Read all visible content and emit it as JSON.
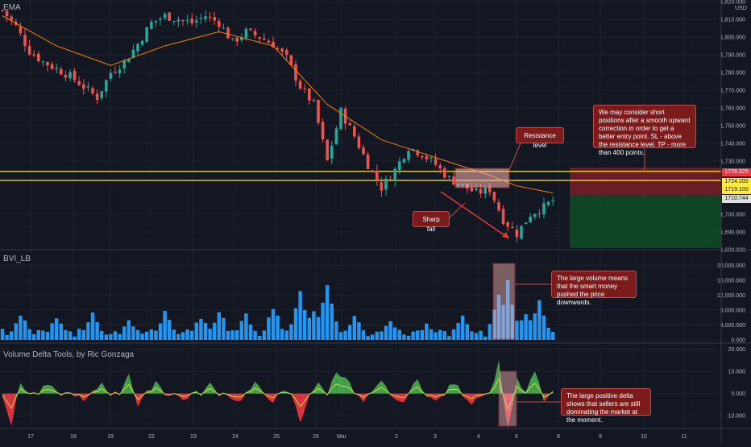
{
  "panels": {
    "price_label": "EMA",
    "currency": "USD",
    "volume_label": "BVI_LB",
    "delta_label": "Volume Delta Tools, by Ric Gonzaga"
  },
  "annotations": {
    "resistance": "Resistance level",
    "sharp_fall": "Sharp fall",
    "strategy": "We may consider short positions after a smooth upward correction in order to get a better entry point. SL - above the resistance level. TP - more than 400 points.",
    "volume": "The large volume means that the smart money pushed the price downwards.",
    "delta": "The large positive delta shows that sellers are still dominating the market at the moment."
  },
  "price_tags": [
    {
      "value": "1726.325",
      "bg": "#f23645",
      "fg": "#ffffff"
    },
    {
      "value": "1724.200",
      "bg": "#ffeb3b",
      "fg": "#131722"
    },
    {
      "value": "1719.100",
      "bg": "#ffeb3b",
      "fg": "#131722"
    },
    {
      "value": "1710.744",
      "bg": "#e0e0e0",
      "fg": "#131722"
    }
  ],
  "colors": {
    "up": "#26a69a",
    "down": "#ef5350",
    "ema": "#f57c00",
    "level": "#ffeb3b",
    "volume": "#2196f3",
    "delta_pos": "#4caf50",
    "delta_neg": "#f23645",
    "delta_line": "#cddc39",
    "stop_zone": "#7b1f28",
    "target_zone": "#0f4d26"
  },
  "chart_data": [
    {
      "type": "candlestick",
      "ylim": [
        1680,
        1820
      ],
      "y_ticks": [
        1820,
        1810,
        1800,
        1790,
        1780,
        1770,
        1760,
        1750,
        1740,
        1730,
        1700,
        1690,
        1680
      ],
      "x_ticks": [
        "17",
        "18",
        "19",
        "22",
        "23",
        "24",
        "25",
        "26",
        "Mar",
        "2",
        "3",
        "4",
        "5",
        "8",
        "9",
        "10",
        "11"
      ],
      "levels": [
        1724.2,
        1719.1
      ],
      "stop_zone": [
        1710.744,
        1726.325
      ],
      "target_zone": [
        1681,
        1710.744
      ],
      "close_path": [
        [
          0,
          1815
        ],
        [
          3,
          1806
        ],
        [
          6,
          1792
        ],
        [
          9,
          1786
        ],
        [
          12,
          1782
        ],
        [
          15,
          1778
        ],
        [
          18,
          1772
        ],
        [
          21,
          1766
        ],
        [
          24,
          1780
        ],
        [
          27,
          1786
        ],
        [
          30,
          1796
        ],
        [
          33,
          1808
        ],
        [
          36,
          1812
        ],
        [
          39,
          1810
        ],
        [
          42,
          1808
        ],
        [
          45,
          1812
        ],
        [
          48,
          1808
        ],
        [
          51,
          1797
        ],
        [
          54,
          1803
        ],
        [
          57,
          1800
        ],
        [
          60,
          1796
        ],
        [
          63,
          1788
        ],
        [
          66,
          1772
        ],
        [
          69,
          1762
        ],
        [
          72,
          1730
        ],
        [
          75,
          1758
        ],
        [
          78,
          1744
        ],
        [
          81,
          1728
        ],
        [
          84,
          1715
        ],
        [
          87,
          1725
        ],
        [
          90,
          1738
        ],
        [
          93,
          1734
        ],
        [
          96,
          1728
        ],
        [
          99,
          1720
        ],
        [
          102,
          1716
        ],
        [
          105,
          1712
        ],
        [
          108,
          1714
        ],
        [
          111,
          1697
        ],
        [
          114,
          1689
        ],
        [
          117,
          1700
        ],
        [
          120,
          1704
        ],
        [
          122,
          1708
        ]
      ],
      "ema_path": [
        [
          0,
          1812
        ],
        [
          12,
          1795
        ],
        [
          24,
          1784
        ],
        [
          36,
          1795
        ],
        [
          48,
          1803
        ],
        [
          60,
          1795
        ],
        [
          72,
          1762
        ],
        [
          84,
          1742
        ],
        [
          96,
          1732
        ],
        [
          108,
          1722
        ],
        [
          114,
          1716
        ],
        [
          122,
          1712
        ]
      ]
    },
    {
      "type": "bar",
      "ylim": [
        0,
        22000
      ],
      "y_ticks": [
        20000,
        16000,
        12000,
        8000,
        4000,
        0
      ],
      "peaks": [
        [
          4,
          8000
        ],
        [
          12,
          7000
        ],
        [
          20,
          9000
        ],
        [
          28,
          6000
        ],
        [
          36,
          8500
        ],
        [
          44,
          7500
        ],
        [
          48,
          9000
        ],
        [
          54,
          8000
        ],
        [
          60,
          10000
        ],
        [
          66,
          16000
        ],
        [
          69,
          9000
        ],
        [
          72,
          19000
        ],
        [
          78,
          7500
        ],
        [
          86,
          6000
        ],
        [
          94,
          5000
        ],
        [
          102,
          8000
        ],
        [
          110,
          16000
        ],
        [
          112,
          17000
        ],
        [
          116,
          9000
        ],
        [
          119,
          12000
        ]
      ]
    },
    {
      "type": "area",
      "ylim": [
        -15,
        22
      ],
      "y_ticks": [
        20,
        10,
        0,
        -10
      ],
      "spikes": [
        [
          2,
          -14
        ],
        [
          4,
          5
        ],
        [
          10,
          4
        ],
        [
          18,
          -4
        ],
        [
          22,
          5
        ],
        [
          28,
          10
        ],
        [
          30,
          -6
        ],
        [
          34,
          6
        ],
        [
          40,
          -3
        ],
        [
          46,
          4
        ],
        [
          52,
          -4
        ],
        [
          56,
          4
        ],
        [
          60,
          -3
        ],
        [
          66,
          -13
        ],
        [
          70,
          4
        ],
        [
          74,
          10
        ],
        [
          76,
          8
        ],
        [
          80,
          -4
        ],
        [
          84,
          5
        ],
        [
          88,
          -5
        ],
        [
          92,
          6
        ],
        [
          96,
          -4
        ],
        [
          100,
          5
        ],
        [
          104,
          -4
        ],
        [
          110,
          14
        ],
        [
          112,
          -16
        ],
        [
          114,
          6
        ],
        [
          118,
          10
        ],
        [
          120,
          -3
        ]
      ]
    }
  ]
}
